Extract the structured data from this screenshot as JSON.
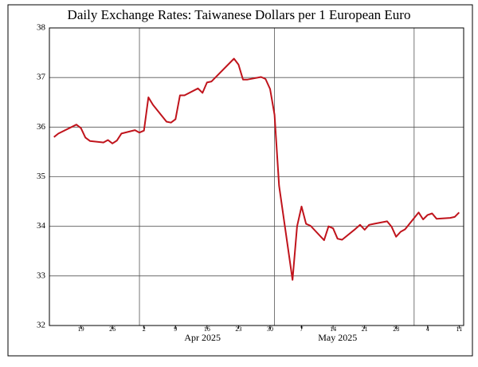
{
  "chart_data": {
    "type": "line",
    "title": "Daily Exchange Rates: Taiwanese Dollars per 1 European Euro",
    "x": [
      "2025-03-13",
      "2025-03-14",
      "2025-03-18",
      "2025-03-19",
      "2025-03-20",
      "2025-03-21",
      "2025-03-24",
      "2025-03-25",
      "2025-03-26",
      "2025-03-27",
      "2025-03-28",
      "2025-03-31",
      "2025-04-01",
      "2025-04-02",
      "2025-04-03",
      "2025-04-04",
      "2025-04-07",
      "2025-04-08",
      "2025-04-09",
      "2025-04-10",
      "2025-04-11",
      "2025-04-14",
      "2025-04-15",
      "2025-04-16",
      "2025-04-17",
      "2025-04-22",
      "2025-04-23",
      "2025-04-24",
      "2025-04-25",
      "2025-04-28",
      "2025-04-29",
      "2025-04-30",
      "2025-05-01",
      "2025-05-02",
      "2025-05-05",
      "2025-05-06",
      "2025-05-07",
      "2025-05-08",
      "2025-05-09",
      "2025-05-12",
      "2025-05-13",
      "2025-05-14",
      "2025-05-15",
      "2025-05-16",
      "2025-05-19",
      "2025-05-20",
      "2025-05-21",
      "2025-05-22",
      "2025-05-23",
      "2025-05-26",
      "2025-05-27",
      "2025-05-28",
      "2025-05-29",
      "2025-05-30",
      "2025-06-02",
      "2025-06-03",
      "2025-06-04",
      "2025-06-05",
      "2025-06-06",
      "2025-06-09",
      "2025-06-10",
      "2025-06-11"
    ],
    "series": [
      {
        "color": "#c0141c",
        "values": [
          35.8,
          35.87,
          36.05,
          35.98,
          35.79,
          35.72,
          35.69,
          35.74,
          35.67,
          35.73,
          35.87,
          35.94,
          35.89,
          35.93,
          36.6,
          36.45,
          36.11,
          36.09,
          36.16,
          36.64,
          36.64,
          36.78,
          36.69,
          36.9,
          36.92,
          37.38,
          37.26,
          36.96,
          36.96,
          37.01,
          36.97,
          36.77,
          36.25,
          34.82,
          32.92,
          34.0,
          34.4,
          34.05,
          34.01,
          33.72,
          34.0,
          33.96,
          33.75,
          33.73,
          33.95,
          34.03,
          33.93,
          34.03,
          34.05,
          34.1,
          33.99,
          33.79,
          33.89,
          33.94,
          34.28,
          34.14,
          34.23,
          34.26,
          34.15,
          34.17,
          34.19,
          34.28
        ]
      }
    ],
    "xlim": [
      "2025-03-12",
      "2025-06-12"
    ],
    "xticks": [
      {
        "value": "2025-03-19",
        "label": "19"
      },
      {
        "value": "2025-03-26",
        "label": "26"
      },
      {
        "value": "2025-04-02",
        "label": "2"
      },
      {
        "value": "2025-04-09",
        "label": "9"
      },
      {
        "value": "2025-04-16",
        "label": "16"
      },
      {
        "value": "2025-04-23",
        "label": "23"
      },
      {
        "value": "2025-04-30",
        "label": "30"
      },
      {
        "value": "2025-05-07",
        "label": "7"
      },
      {
        "value": "2025-05-14",
        "label": "14"
      },
      {
        "value": "2025-05-21",
        "label": "21"
      },
      {
        "value": "2025-05-28",
        "label": "28"
      },
      {
        "value": "2025-06-04",
        "label": "4"
      },
      {
        "value": "2025-06-11",
        "label": "11"
      }
    ],
    "month_labels": [
      {
        "value": "2025-04-15",
        "label": "Apr 2025"
      },
      {
        "value": "2025-05-15",
        "label": "May 2025"
      }
    ],
    "month_lines": [
      "2025-04-01",
      "2025-05-01",
      "2025-06-01"
    ],
    "ylim": [
      32,
      38
    ],
    "yticks": [
      32,
      33,
      34,
      35,
      36,
      37,
      38
    ],
    "grid": true
  }
}
